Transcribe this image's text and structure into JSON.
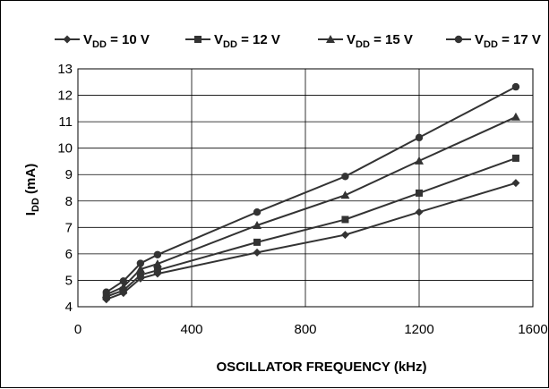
{
  "chart_data": {
    "type": "line",
    "xlabel": "OSCILLATOR  FREQUENCY  (kHz)",
    "ylabel_main": "I",
    "ylabel_sub": "DD",
    "ylabel_unit": " (mA)",
    "xlim": [
      0,
      1600
    ],
    "ylim": [
      4,
      13
    ],
    "xticks": [
      0,
      400,
      800,
      1200,
      1600
    ],
    "yticks": [
      4,
      5,
      6,
      7,
      8,
      9,
      10,
      11,
      12,
      13
    ],
    "grid": true,
    "legend_position": "top",
    "series": [
      {
        "label_main": "V",
        "label_sub": "DD",
        "label_rest": " = 10 V",
        "marker": "diamond",
        "color": "#333333",
        "x": [
          100,
          160,
          220,
          280,
          630,
          940,
          1200,
          1540
        ],
        "y": [
          4.28,
          4.52,
          5.07,
          5.25,
          6.05,
          6.72,
          7.58,
          8.68
        ]
      },
      {
        "label_main": "V",
        "label_sub": "DD",
        "label_rest": " = 12 V",
        "marker": "square",
        "color": "#333333",
        "x": [
          100,
          160,
          220,
          280,
          630,
          940,
          1200,
          1540
        ],
        "y": [
          4.38,
          4.62,
          5.2,
          5.38,
          6.44,
          7.3,
          8.3,
          9.62
        ]
      },
      {
        "label_main": "V",
        "label_sub": "DD",
        "label_rest": " = 15 V",
        "marker": "triangle",
        "color": "#333333",
        "x": [
          100,
          160,
          220,
          280,
          630,
          940,
          1200,
          1540
        ],
        "y": [
          4.46,
          4.75,
          5.42,
          5.62,
          7.08,
          8.22,
          9.52,
          11.18
        ]
      },
      {
        "label_main": "V",
        "label_sub": "DD",
        "label_rest": " = 17 V",
        "marker": "circle",
        "color": "#333333",
        "x": [
          100,
          160,
          220,
          280,
          630,
          940,
          1200,
          1540
        ],
        "y": [
          4.55,
          4.97,
          5.64,
          5.97,
          7.58,
          8.93,
          10.4,
          12.32
        ]
      }
    ]
  }
}
